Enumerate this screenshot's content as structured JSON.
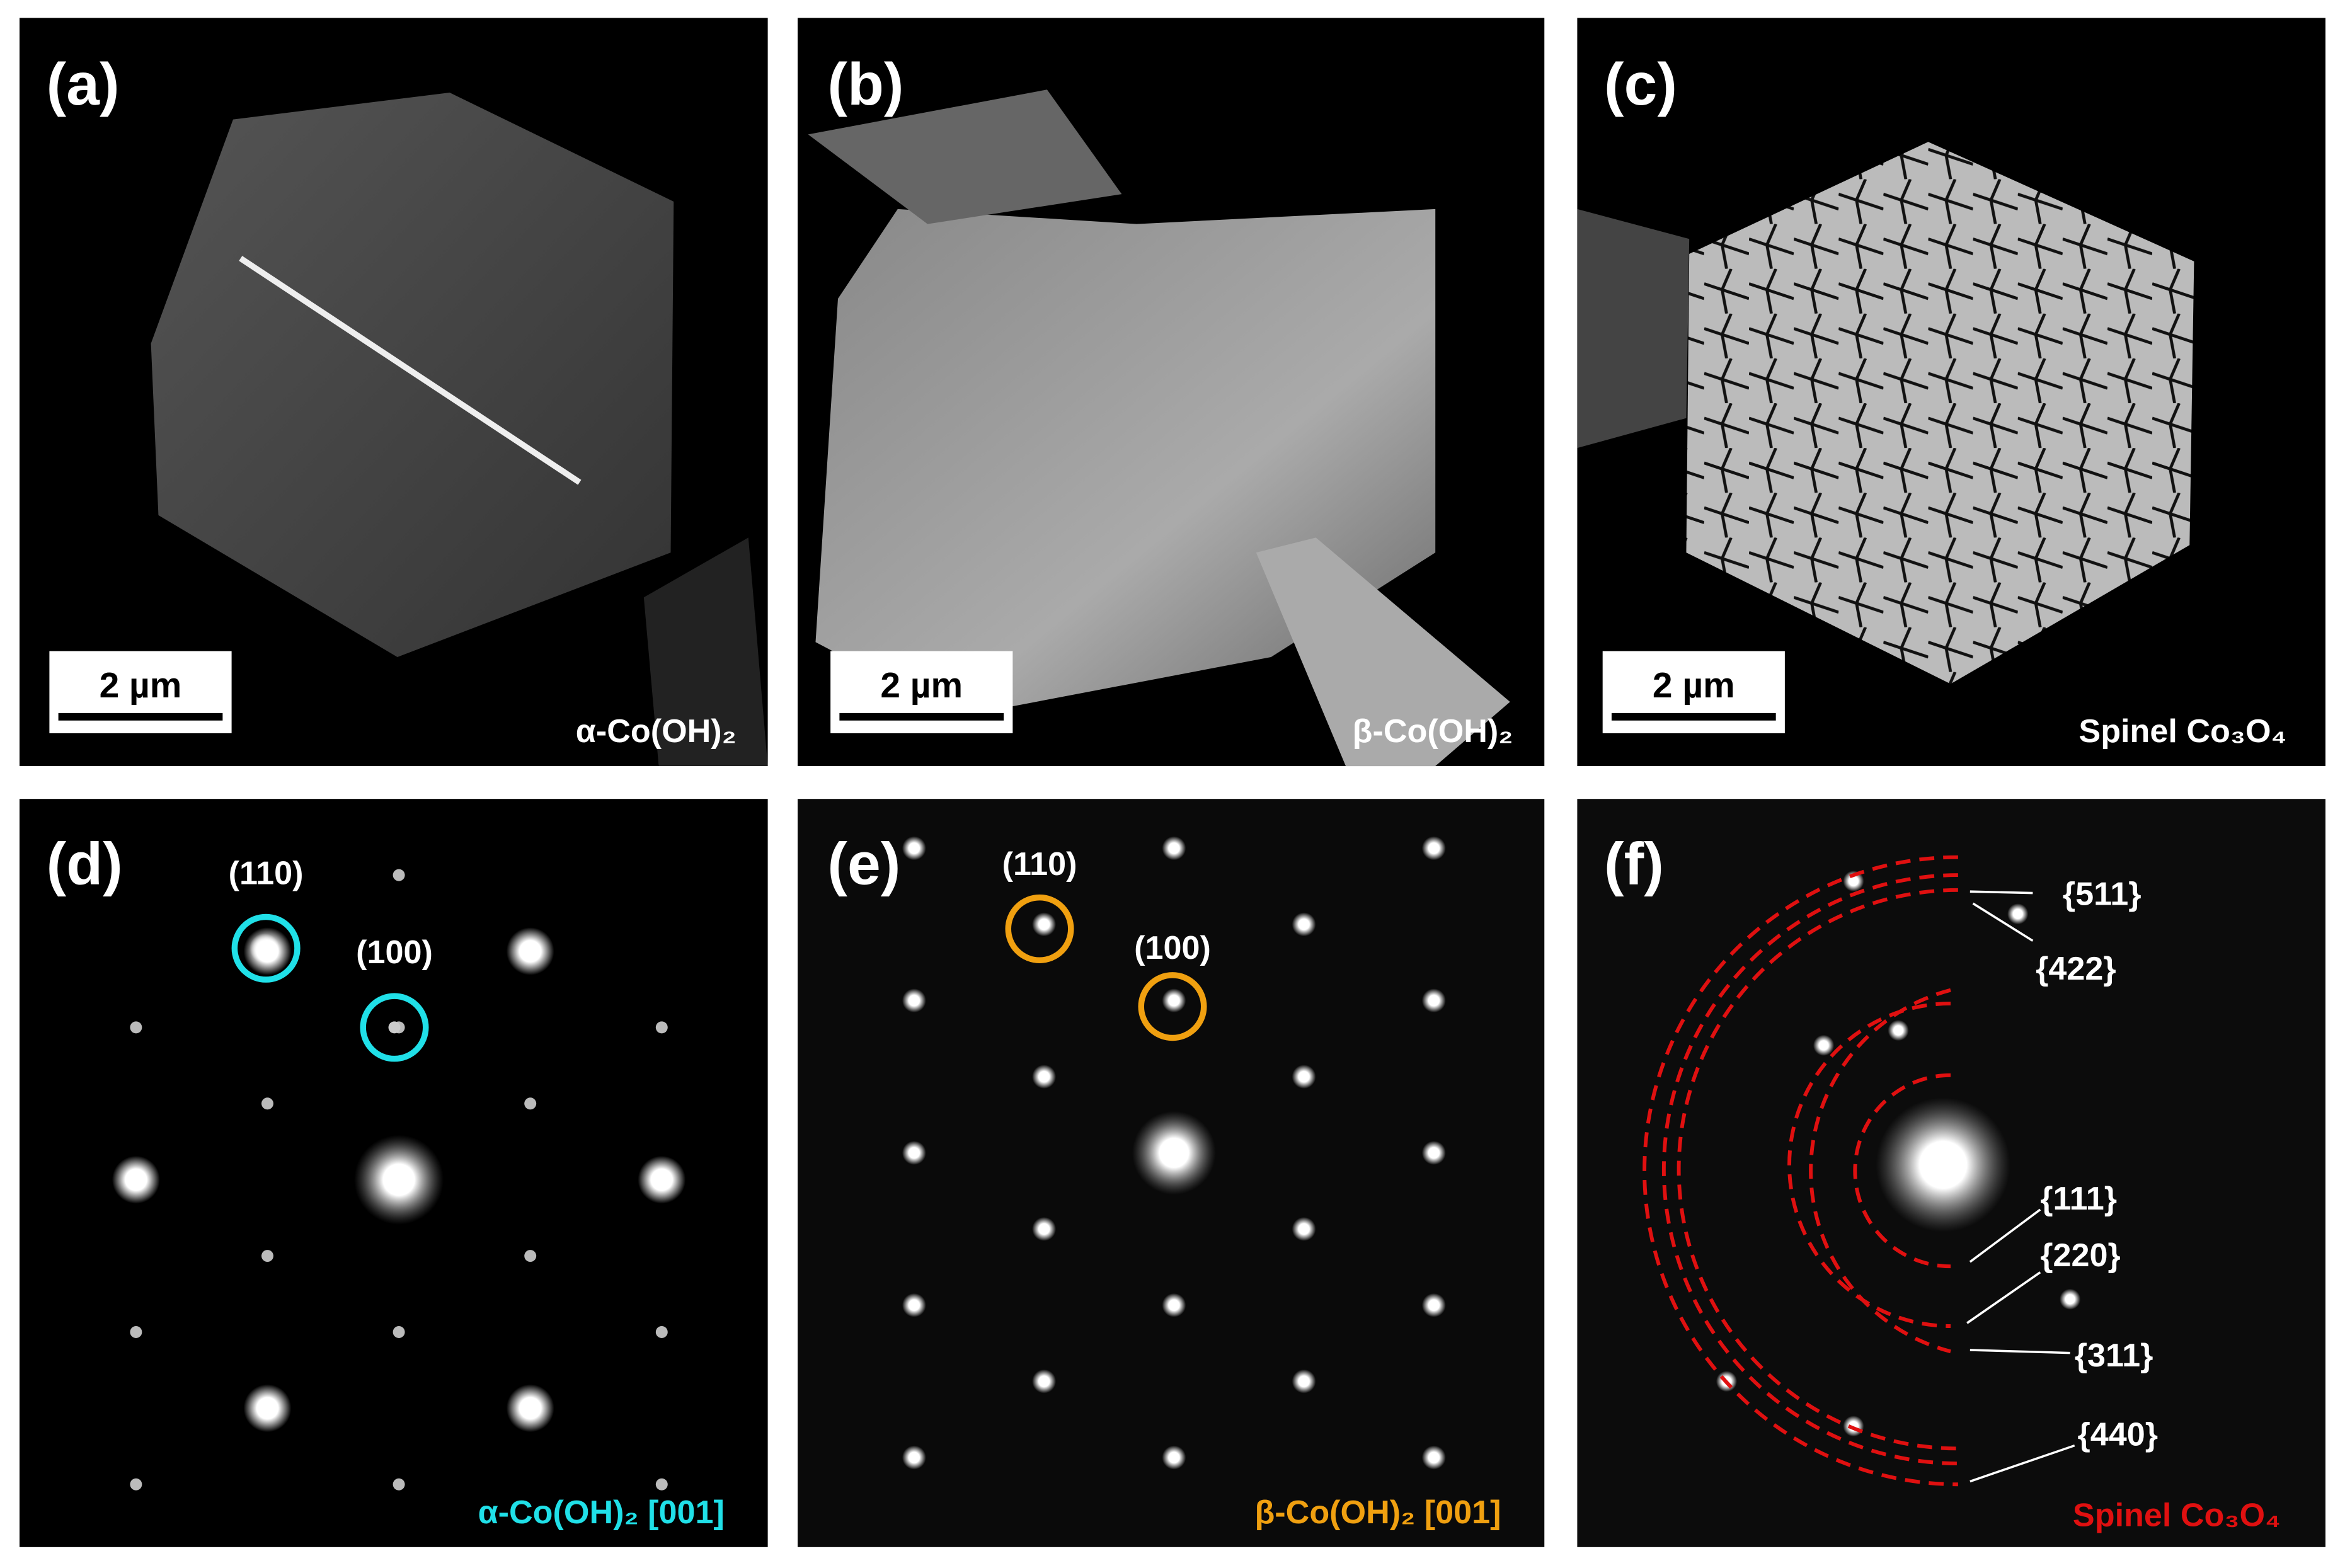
{
  "panels": [
    {
      "label": "(a)",
      "scale_bar": "2 µm",
      "caption": "α-Co(OH)₂"
    },
    {
      "label": "(b)",
      "scale_bar": "2 µm",
      "caption": "β-Co(OH)₂"
    },
    {
      "label": "(c)",
      "scale_bar": "2 µm",
      "caption": "Spinel Co₃O₄"
    },
    {
      "label": "(d)",
      "caption": "α-Co(OH)₂ [001]",
      "spots": [
        "(110)",
        "(100)"
      ]
    },
    {
      "label": "(e)",
      "caption": "β-Co(OH)₂ [001]",
      "spots": [
        "(110)",
        "(100)"
      ]
    },
    {
      "label": "(f)",
      "caption": "Spinel Co₃O₄",
      "rings": [
        "{511}",
        "{422}",
        "{111}",
        "{220}",
        "{311}",
        "{440}"
      ]
    }
  ]
}
